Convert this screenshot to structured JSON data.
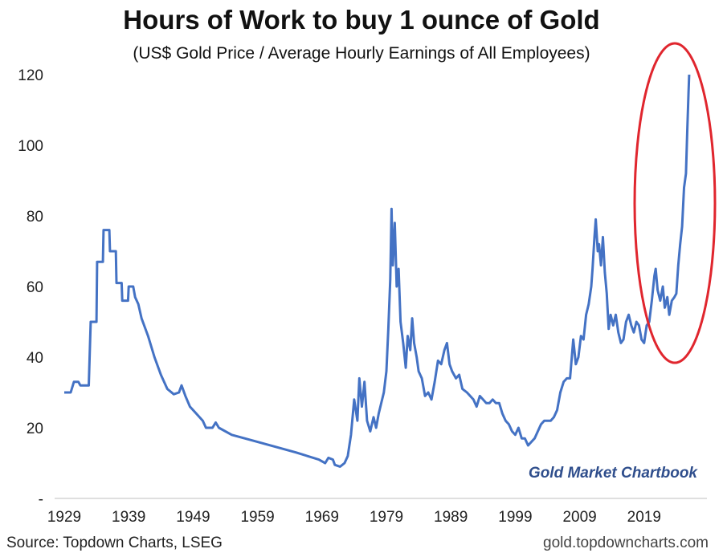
{
  "chart_data": {
    "type": "line",
    "title": "Hours of Work to buy 1 ounce of Gold",
    "subtitle": "(US$ Gold Price / Average Hourly Earnings of All Employees)",
    "xlabel": "",
    "ylabel": "",
    "x_ticks": [
      "1929",
      "1939",
      "1949",
      "1959",
      "1969",
      "1979",
      "1989",
      "1999",
      "2009",
      "2019"
    ],
    "y_ticks": [
      {
        "value": 0,
        "label": "-"
      },
      {
        "value": 20,
        "label": "20"
      },
      {
        "value": 40,
        "label": "40"
      },
      {
        "value": 60,
        "label": "60"
      },
      {
        "value": 80,
        "label": "80"
      },
      {
        "value": 100,
        "label": "100"
      },
      {
        "value": 120,
        "label": "120"
      }
    ],
    "xlim": [
      1929,
      2029
    ],
    "ylim": [
      0,
      125
    ],
    "grid": false,
    "series": [
      {
        "color": "#4472c4",
        "points": [
          [
            1929.0,
            30
          ],
          [
            1930.0,
            30
          ],
          [
            1930.5,
            33
          ],
          [
            1931.2,
            33
          ],
          [
            1931.5,
            32
          ],
          [
            1932.8,
            32
          ],
          [
            1933.1,
            50
          ],
          [
            1934.0,
            50
          ],
          [
            1934.1,
            67
          ],
          [
            1935.0,
            67
          ],
          [
            1935.1,
            76
          ],
          [
            1936.0,
            76
          ],
          [
            1936.1,
            70
          ],
          [
            1937.0,
            70
          ],
          [
            1937.1,
            61
          ],
          [
            1937.9,
            61
          ],
          [
            1938.0,
            56
          ],
          [
            1938.9,
            56
          ],
          [
            1939.0,
            60
          ],
          [
            1939.7,
            60
          ],
          [
            1940.0,
            57
          ],
          [
            1940.5,
            55
          ],
          [
            1941.0,
            51
          ],
          [
            1942.0,
            46
          ],
          [
            1943.0,
            40
          ],
          [
            1944.0,
            35
          ],
          [
            1945.0,
            31
          ],
          [
            1946.0,
            29.5
          ],
          [
            1946.8,
            30
          ],
          [
            1947.2,
            32
          ],
          [
            1947.8,
            29
          ],
          [
            1948.5,
            26
          ],
          [
            1949.5,
            24
          ],
          [
            1950.5,
            22
          ],
          [
            1951.0,
            20
          ],
          [
            1952.0,
            20
          ],
          [
            1952.5,
            21.5
          ],
          [
            1953.0,
            20
          ],
          [
            1955.0,
            18
          ],
          [
            1957.0,
            17
          ],
          [
            1959.0,
            16
          ],
          [
            1962.0,
            14.5
          ],
          [
            1965.0,
            13
          ],
          [
            1968.5,
            11
          ],
          [
            1969.5,
            10
          ],
          [
            1970.0,
            11.5
          ],
          [
            1970.7,
            11
          ],
          [
            1971.0,
            9.5
          ],
          [
            1971.8,
            9
          ],
          [
            1972.5,
            10
          ],
          [
            1973.0,
            12
          ],
          [
            1973.5,
            18
          ],
          [
            1974.0,
            28
          ],
          [
            1974.5,
            22
          ],
          [
            1974.8,
            34
          ],
          [
            1975.2,
            26
          ],
          [
            1975.6,
            33
          ],
          [
            1976.0,
            22
          ],
          [
            1976.5,
            19
          ],
          [
            1977.0,
            23
          ],
          [
            1977.4,
            20
          ],
          [
            1977.8,
            24
          ],
          [
            1978.2,
            27
          ],
          [
            1978.6,
            30
          ],
          [
            1979.0,
            36
          ],
          [
            1979.3,
            48
          ],
          [
            1979.6,
            62
          ],
          [
            1979.8,
            82
          ],
          [
            1980.0,
            66
          ],
          [
            1980.3,
            78
          ],
          [
            1980.6,
            60
          ],
          [
            1980.9,
            65
          ],
          [
            1981.2,
            50
          ],
          [
            1981.6,
            44
          ],
          [
            1982.0,
            37
          ],
          [
            1982.3,
            46
          ],
          [
            1982.7,
            42
          ],
          [
            1983.0,
            51
          ],
          [
            1983.3,
            44
          ],
          [
            1983.7,
            40
          ],
          [
            1984.0,
            36
          ],
          [
            1984.5,
            34
          ],
          [
            1985.0,
            29
          ],
          [
            1985.5,
            30
          ],
          [
            1986.0,
            28
          ],
          [
            1986.5,
            33
          ],
          [
            1987.0,
            39
          ],
          [
            1987.5,
            38
          ],
          [
            1988.0,
            42
          ],
          [
            1988.4,
            44
          ],
          [
            1988.8,
            38
          ],
          [
            1989.2,
            36
          ],
          [
            1989.8,
            34
          ],
          [
            1990.3,
            35
          ],
          [
            1990.8,
            31
          ],
          [
            1991.5,
            30
          ],
          [
            1992.0,
            29
          ],
          [
            1992.5,
            28
          ],
          [
            1993.0,
            26
          ],
          [
            1993.5,
            29
          ],
          [
            1994.0,
            28
          ],
          [
            1994.5,
            27
          ],
          [
            1995.0,
            27
          ],
          [
            1995.5,
            28
          ],
          [
            1996.0,
            27
          ],
          [
            1996.5,
            27
          ],
          [
            1997.0,
            24
          ],
          [
            1997.5,
            22
          ],
          [
            1998.0,
            21
          ],
          [
            1998.5,
            19
          ],
          [
            1999.0,
            18
          ],
          [
            1999.5,
            20
          ],
          [
            2000.0,
            17
          ],
          [
            2000.5,
            17
          ],
          [
            2001.0,
            15
          ],
          [
            2001.5,
            16
          ],
          [
            2002.0,
            17
          ],
          [
            2002.5,
            19
          ],
          [
            2003.0,
            21
          ],
          [
            2003.5,
            22
          ],
          [
            2004.0,
            22
          ],
          [
            2004.5,
            22
          ],
          [
            2005.0,
            23
          ],
          [
            2005.5,
            25
          ],
          [
            2006.0,
            30
          ],
          [
            2006.5,
            33
          ],
          [
            2007.0,
            34
          ],
          [
            2007.5,
            34
          ],
          [
            2008.0,
            45
          ],
          [
            2008.4,
            38
          ],
          [
            2008.8,
            40
          ],
          [
            2009.2,
            46
          ],
          [
            2009.6,
            45
          ],
          [
            2010.0,
            52
          ],
          [
            2010.4,
            55
          ],
          [
            2010.8,
            60
          ],
          [
            2011.0,
            65
          ],
          [
            2011.3,
            74
          ],
          [
            2011.5,
            79
          ],
          [
            2011.8,
            70
          ],
          [
            2012.0,
            72
          ],
          [
            2012.3,
            66
          ],
          [
            2012.6,
            74
          ],
          [
            2012.9,
            64
          ],
          [
            2013.2,
            58
          ],
          [
            2013.5,
            48
          ],
          [
            2013.8,
            52
          ],
          [
            2014.2,
            49
          ],
          [
            2014.6,
            52
          ],
          [
            2015.0,
            47
          ],
          [
            2015.4,
            44
          ],
          [
            2015.8,
            45
          ],
          [
            2016.2,
            50
          ],
          [
            2016.6,
            52
          ],
          [
            2017.0,
            49
          ],
          [
            2017.4,
            47
          ],
          [
            2017.8,
            50
          ],
          [
            2018.2,
            49
          ],
          [
            2018.6,
            45
          ],
          [
            2019.0,
            44
          ],
          [
            2019.4,
            49
          ],
          [
            2019.8,
            50
          ],
          [
            2020.2,
            56
          ],
          [
            2020.6,
            63
          ],
          [
            2020.8,
            65
          ],
          [
            2021.1,
            59
          ],
          [
            2021.5,
            56
          ],
          [
            2021.9,
            60
          ],
          [
            2022.2,
            54
          ],
          [
            2022.6,
            57
          ],
          [
            2022.9,
            52
          ],
          [
            2023.3,
            56
          ],
          [
            2023.7,
            57
          ],
          [
            2024.0,
            58
          ],
          [
            2024.3,
            66
          ],
          [
            2024.6,
            72
          ],
          [
            2024.9,
            77
          ],
          [
            2025.2,
            88
          ],
          [
            2025.5,
            92
          ],
          [
            2025.7,
            104
          ],
          [
            2025.9,
            115
          ],
          [
            2026.0,
            120
          ]
        ]
      }
    ],
    "annotations": [
      {
        "type": "ellipse",
        "color": "#e0262e",
        "note": "red circle around recent spike"
      },
      {
        "type": "text",
        "text": "Gold Market Chartbook"
      }
    ]
  },
  "source": "Source: Topdown Charts, LSEG",
  "credit": "gold.topdowncharts.com",
  "colors": {
    "line": "#4472c4",
    "highlight": "#e0262e",
    "watermark": "#2f4e8c"
  }
}
